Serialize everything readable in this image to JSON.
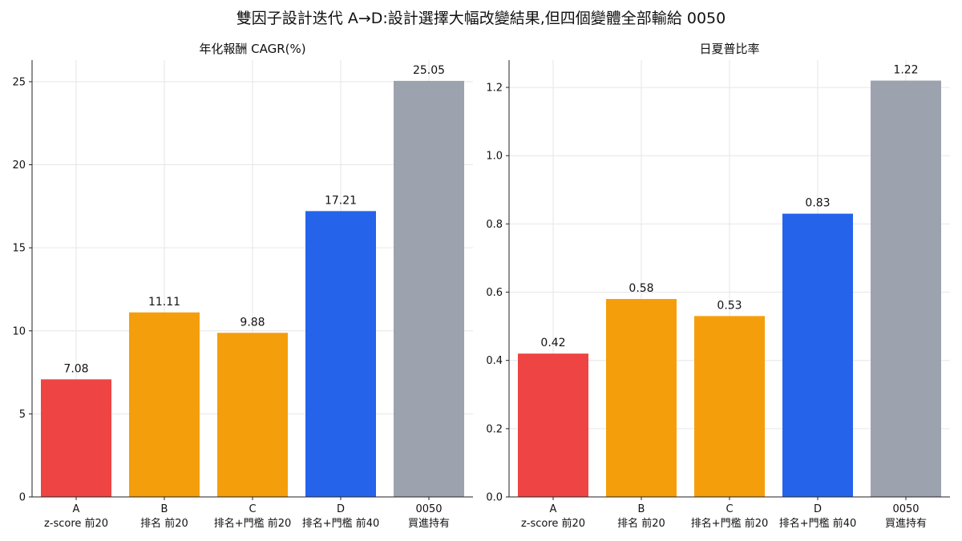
{
  "title": "雙因子設計迭代 A→D:設計選擇大幅改變結果,但四個變體全部輸給 0050",
  "chart_data": [
    {
      "type": "bar",
      "title": "年化報酬 CAGR(%)",
      "categories": [
        {
          "code": "A",
          "desc": "z-score 前20"
        },
        {
          "code": "B",
          "desc": "排名 前20"
        },
        {
          "code": "C",
          "desc": "排名+門檻 前20"
        },
        {
          "code": "D",
          "desc": "排名+門檻 前40"
        },
        {
          "code": "0050",
          "desc": "買進持有"
        }
      ],
      "values": [
        7.08,
        11.11,
        9.88,
        17.21,
        25.05
      ],
      "value_labels": [
        "7.08",
        "11.11",
        "9.88",
        "17.21",
        "25.05"
      ],
      "colors": [
        "#ef4444",
        "#f59e0b",
        "#f59e0b",
        "#2563eb",
        "#9ca3af"
      ],
      "ylim": [
        0,
        26.3
      ],
      "yticks": [
        "0",
        "5",
        "10",
        "15",
        "20",
        "25"
      ],
      "ytick_values": [
        0,
        5,
        10,
        15,
        20,
        25
      ],
      "grid": true
    },
    {
      "type": "bar",
      "title": "日夏普比率",
      "categories": [
        {
          "code": "A",
          "desc": "z-score 前20"
        },
        {
          "code": "B",
          "desc": "排名 前20"
        },
        {
          "code": "C",
          "desc": "排名+門檻 前20"
        },
        {
          "code": "D",
          "desc": "排名+門檻 前40"
        },
        {
          "code": "0050",
          "desc": "買進持有"
        }
      ],
      "values": [
        0.42,
        0.58,
        0.53,
        0.83,
        1.22
      ],
      "value_labels": [
        "0.42",
        "0.58",
        "0.53",
        "0.83",
        "1.22"
      ],
      "colors": [
        "#ef4444",
        "#f59e0b",
        "#f59e0b",
        "#2563eb",
        "#9ca3af"
      ],
      "ylim": [
        0,
        1.28
      ],
      "yticks": [
        "0.0",
        "0.2",
        "0.4",
        "0.6",
        "0.8",
        "1.0",
        "1.2"
      ],
      "ytick_values": [
        0,
        0.2,
        0.4,
        0.6,
        0.8,
        1.0,
        1.2
      ],
      "grid": true
    }
  ]
}
